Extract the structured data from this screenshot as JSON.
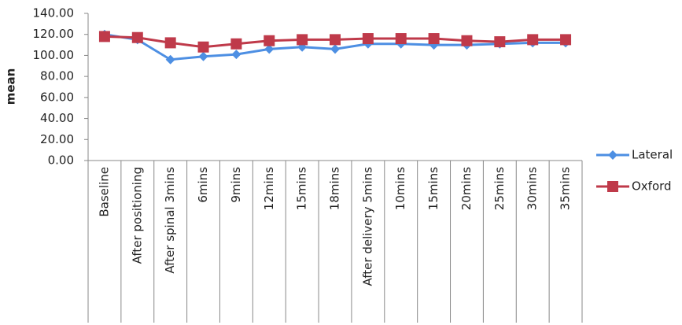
{
  "chart_data": {
    "type": "line",
    "y_label": "mean",
    "categories": [
      "Baseline",
      "After positioning",
      "After spinal 3mins",
      "6mins",
      "9mins",
      "12mins",
      "15mins",
      "18mins",
      "After delivery 5mins",
      "10mins",
      "15mins",
      "20mins",
      "25mins",
      "30mins",
      "35mins"
    ],
    "series": [
      {
        "name": "Lateral",
        "color": "#4d8fe3",
        "marker": "diamond",
        "values": [
          120,
          115,
          96,
          99,
          101,
          106,
          108,
          106,
          111,
          111,
          110,
          110,
          111,
          112,
          112
        ]
      },
      {
        "name": "Oxford",
        "color": "#bf3a4a",
        "marker": "square",
        "values": [
          118,
          117,
          112,
          108,
          111,
          114,
          115,
          115,
          116,
          116,
          116,
          114,
          113,
          115,
          115
        ]
      }
    ],
    "ylim": [
      0,
      140
    ],
    "yticks": [
      {
        "value": 0,
        "label": "0.00"
      },
      {
        "value": 20,
        "label": "20.00"
      },
      {
        "value": 40,
        "label": "40.00"
      },
      {
        "value": 60,
        "label": "60.00"
      },
      {
        "value": 80,
        "label": "80.00"
      },
      {
        "value": 100,
        "label": "100.00"
      },
      {
        "value": 120,
        "label": "120.00"
      },
      {
        "value": 140,
        "label": "140.00"
      }
    ],
    "legend": "right"
  }
}
